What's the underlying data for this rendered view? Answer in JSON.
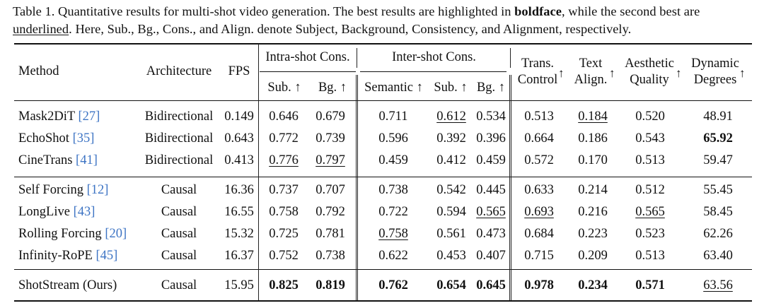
{
  "caption": {
    "part1": "Table 1.  Quantitative results for multi-shot video generation.  The best results are highlighted in ",
    "bold_word": "boldface",
    "part2": ", while the second best are ",
    "underline_word": "underlined",
    "part3": ". Here, Sub., Bg., Cons., and Align. denote Subject, Background, Consistency, and Alignment, respectively."
  },
  "header": {
    "method": "Method",
    "architecture": "Architecture",
    "fps": "FPS",
    "intra_group": "Intra-shot Cons.",
    "inter_group": "Inter-shot Cons.",
    "sub": "Sub. ↑",
    "bg": "Bg. ↑",
    "semantic": "Semantic ↑",
    "inter_sub": "Sub. ↑",
    "inter_bg": "Bg. ↑",
    "trans_1": "Trans.",
    "trans_2": "Control",
    "text_1": "Text",
    "text_2": "Align.",
    "aes_1": "Aesthetic",
    "aes_2": "Quality",
    "dyn_1": "Dynamic",
    "dyn_2": "Degrees",
    "up_arrow": "↑"
  },
  "rows": [
    {
      "name": "Mask2DiT ",
      "ref": "[27]",
      "arch": "Bidirectional",
      "fps": "0.149",
      "sub": "0.646",
      "bg": "0.679",
      "sem": "0.711",
      "isub": "0.612",
      "ibg": "0.534",
      "trans": "0.513",
      "text": "0.184",
      "aes": "0.520",
      "dyn": "48.91"
    },
    {
      "name": "EchoShot ",
      "ref": "[35]",
      "arch": "Bidirectional",
      "fps": "0.643",
      "sub": "0.772",
      "bg": "0.739",
      "sem": "0.596",
      "isub": "0.392",
      "ibg": "0.396",
      "trans": "0.664",
      "text": "0.186",
      "aes": "0.543",
      "dyn": "65.92"
    },
    {
      "name": "CineTrans ",
      "ref": "[41]",
      "arch": "Bidirectional",
      "fps": "0.413",
      "sub": "0.776",
      "bg": "0.797",
      "sem": "0.459",
      "isub": "0.412",
      "ibg": "0.459",
      "trans": "0.572",
      "text": "0.170",
      "aes": "0.513",
      "dyn": "59.47"
    },
    {
      "name": "Self Forcing ",
      "ref": "[12]",
      "arch": "Causal",
      "fps": "16.36",
      "sub": "0.737",
      "bg": "0.707",
      "sem": "0.738",
      "isub": "0.542",
      "ibg": "0.445",
      "trans": "0.633",
      "text": "0.214",
      "aes": "0.512",
      "dyn": "55.45"
    },
    {
      "name": "LongLive ",
      "ref": "[43]",
      "arch": "Causal",
      "fps": "16.55",
      "sub": "0.758",
      "bg": "0.792",
      "sem": "0.722",
      "isub": "0.594",
      "ibg": "0.565",
      "trans": "0.693",
      "text": "0.216",
      "aes": "0.565",
      "dyn": "58.45"
    },
    {
      "name": "Rolling Forcing ",
      "ref": "[20]",
      "arch": "Causal",
      "fps": "15.32",
      "sub": "0.725",
      "bg": "0.781",
      "sem": "0.758",
      "isub": "0.561",
      "ibg": "0.473",
      "trans": "0.684",
      "text": "0.223",
      "aes": "0.523",
      "dyn": "62.26"
    },
    {
      "name": "Infinity-RoPE ",
      "ref": "[45]",
      "arch": "Causal",
      "fps": "16.37",
      "sub": "0.752",
      "bg": "0.738",
      "sem": "0.622",
      "isub": "0.453",
      "ibg": "0.407",
      "trans": "0.715",
      "text": "0.209",
      "aes": "0.513",
      "dyn": "63.40"
    },
    {
      "name": "ShotStream (Ours)",
      "ref": "",
      "arch": "Causal",
      "fps": "15.95",
      "sub": "0.825",
      "bg": "0.819",
      "sem": "0.762",
      "isub": "0.654",
      "ibg": "0.645",
      "trans": "0.978",
      "text": "0.234",
      "aes": "0.571",
      "dyn": "63.56"
    }
  ],
  "colors": {
    "text": "#111111",
    "citation": "#3d74c4"
  }
}
